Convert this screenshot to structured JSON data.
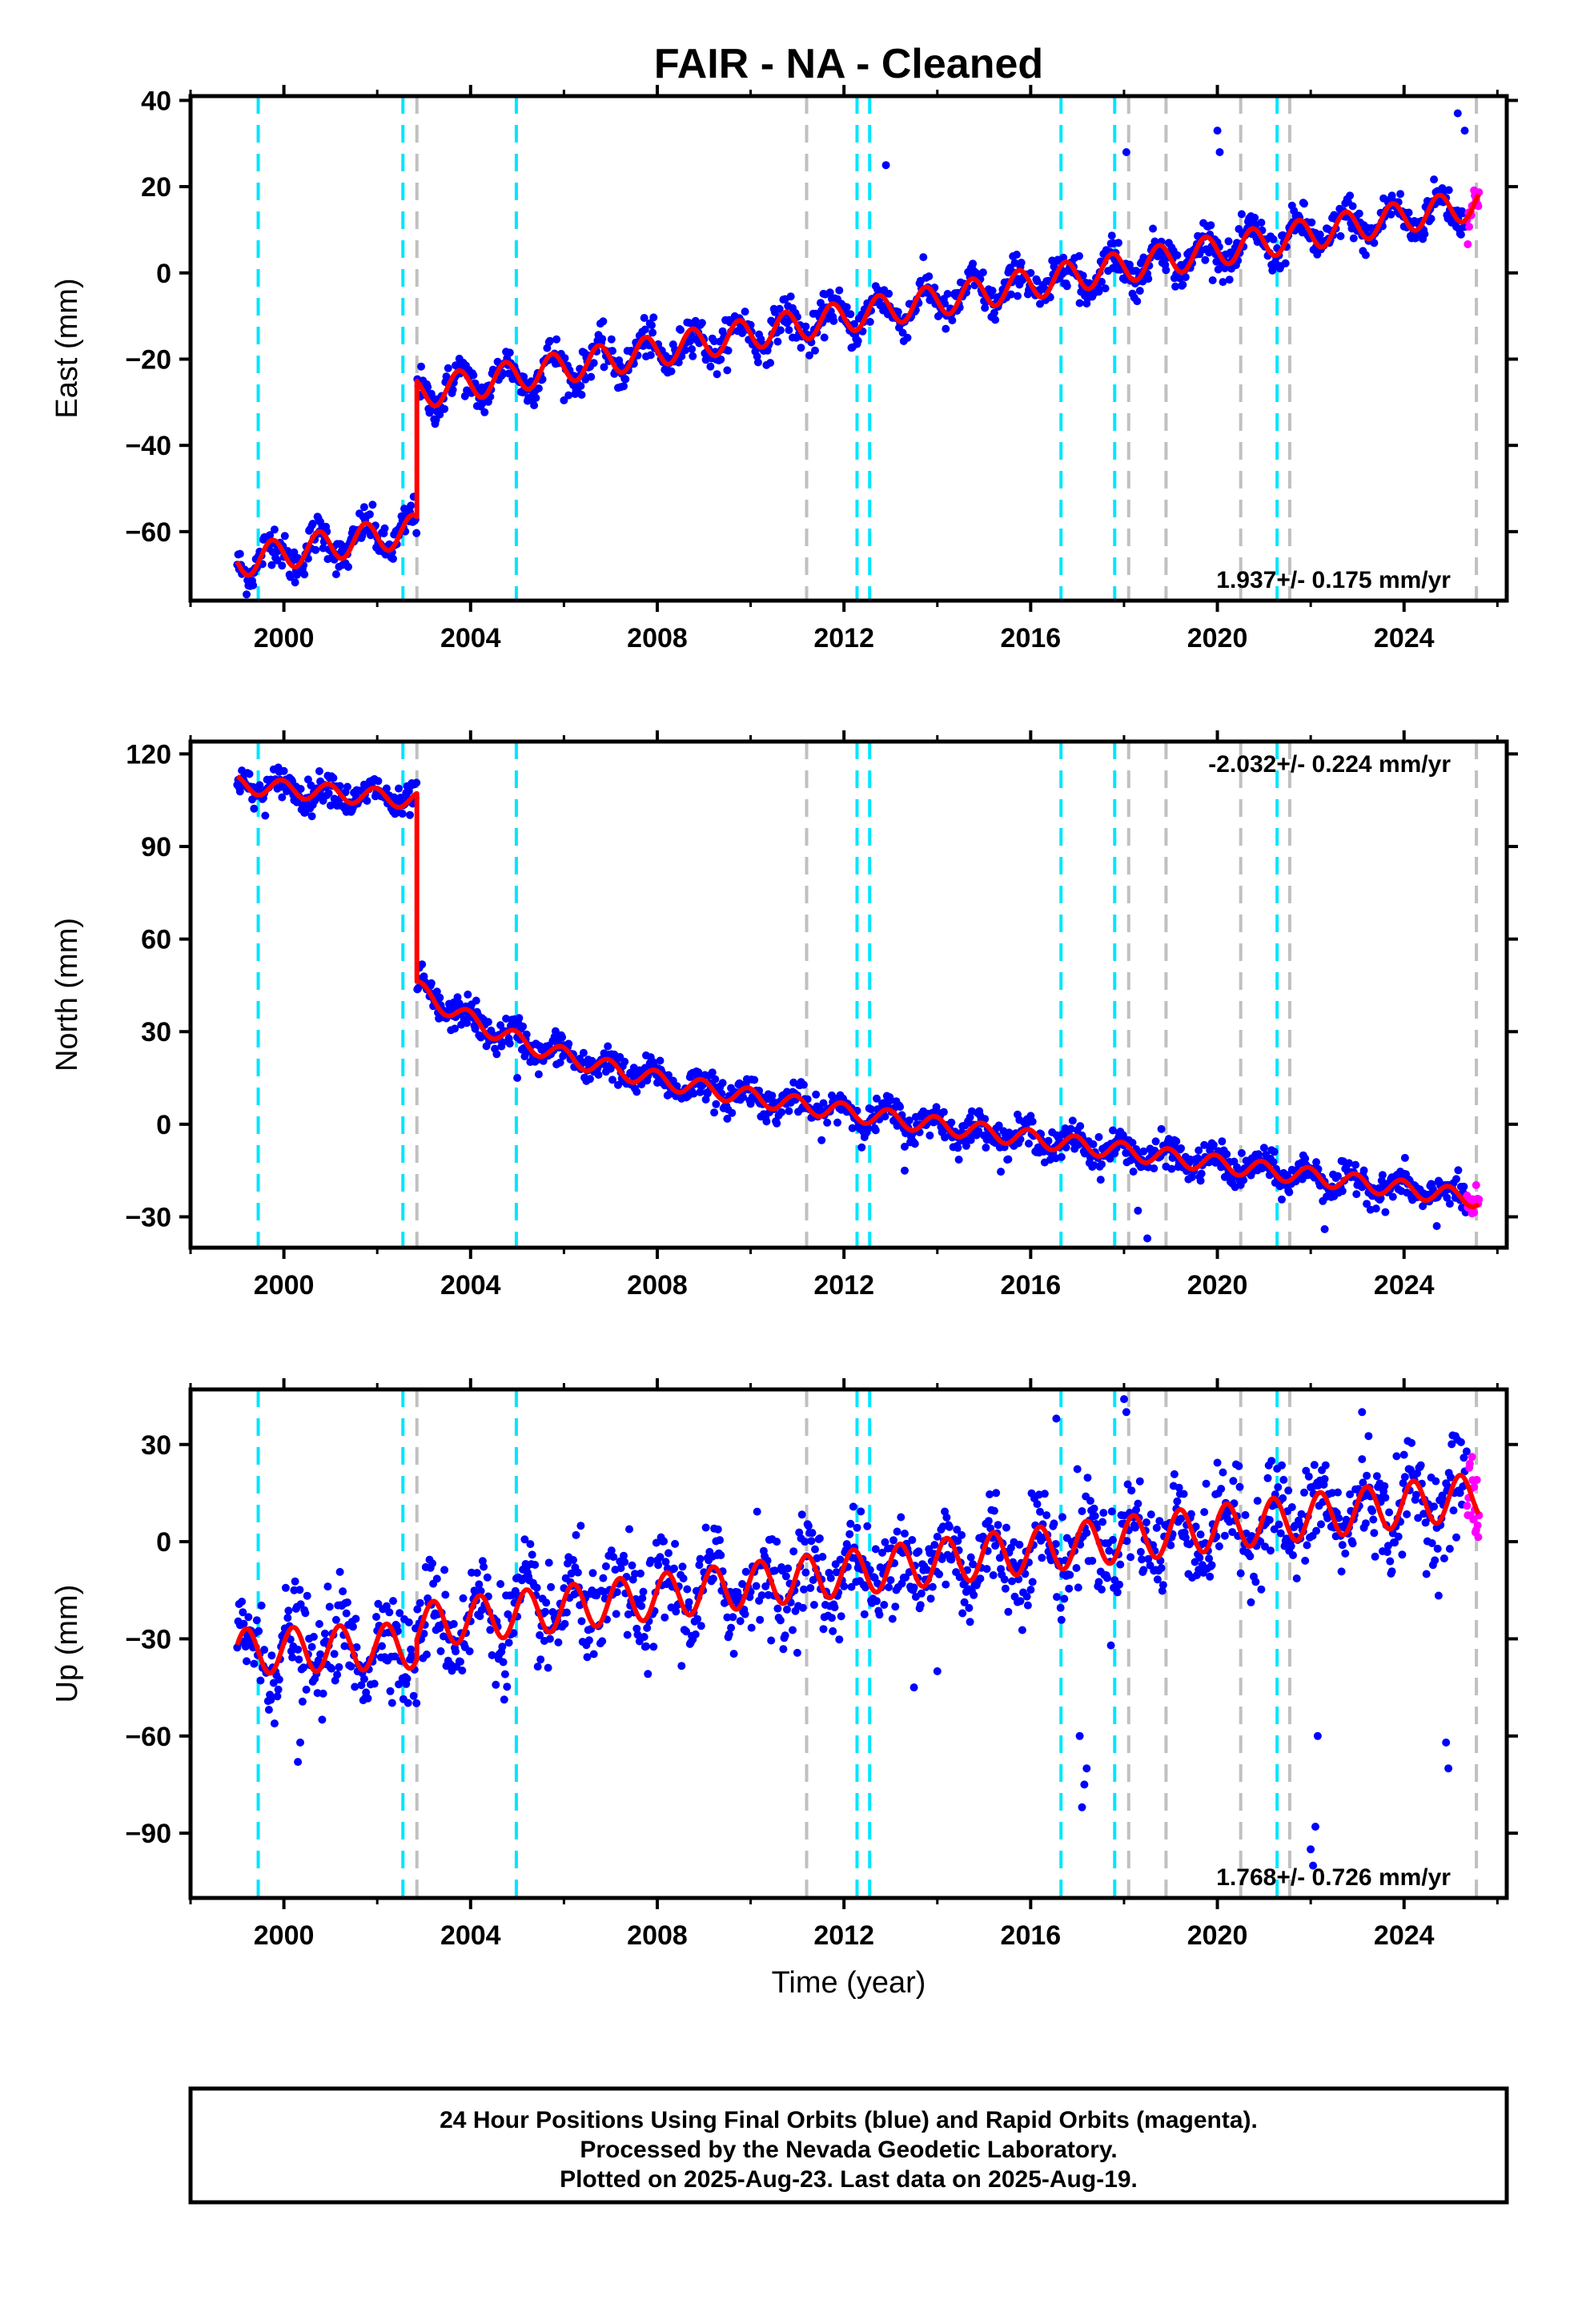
{
  "chart_data": {
    "type": "scatter",
    "title": "FAIR  - NA - Cleaned",
    "xlabel": "Time (year)",
    "xlim": [
      1998.0,
      2026.2
    ],
    "x_ticks": [
      2000,
      2004,
      2008,
      2012,
      2016,
      2020,
      2024
    ],
    "x_tick_labels": [
      "2000",
      "2004",
      "2008",
      "2012",
      "2016",
      "2020",
      "2024"
    ],
    "grid": false,
    "colors": {
      "final_orbits": "#0000ff",
      "rapid_orbits": "#ff00ff",
      "model": "#ff0000",
      "cyan_lines": "#00e5ff",
      "gray_lines": "#c0c0c0"
    },
    "vertical_lines": {
      "cyan": [
        1999.45,
        2002.55,
        2004.98,
        2012.28,
        2012.55,
        2016.65,
        2017.8,
        2021.28
      ],
      "gray": [
        2002.85,
        2011.2,
        2018.1,
        2018.9,
        2020.5,
        2021.55,
        2025.55
      ]
    },
    "panels": [
      {
        "ylabel": "East (mm)",
        "ylim": [
          -76,
          41
        ],
        "y_ticks": [
          -60,
          -40,
          -20,
          0,
          20,
          40
        ],
        "y_tick_labels": [
          "−60",
          "−40",
          "−20",
          "0",
          "20",
          "40"
        ],
        "rate_label": "1.937+/- 0.175 mm/yr",
        "rate_position": "bottom-right",
        "model": {
          "pieces": [
            {
              "start": 1999.0,
              "end": 2002.85,
              "offset": -67.0,
              "rate": 1.937,
              "ref": 1999.0
            },
            {
              "start": 2002.85,
              "end": 2025.6,
              "offset": -28.0,
              "rate": 1.937,
              "ref": 2002.85
            }
          ],
          "annual_amplitude": 3.6,
          "annual_phase": 0.5
        },
        "outliers": [
          [
            2017.05,
            -7
          ],
          [
            2018.05,
            28
          ],
          [
            2020.0,
            33
          ],
          [
            2020.05,
            28
          ],
          [
            2012.9,
            25
          ],
          [
            2025.15,
            37
          ],
          [
            2025.3,
            33
          ],
          [
            2010.9,
            -15
          ],
          [
            2018.4,
            -2
          ]
        ],
        "scatter_sigma": 2.2
      },
      {
        "ylabel": "North (mm)",
        "ylim": [
          -40,
          124
        ],
        "y_ticks": [
          -30,
          0,
          30,
          60,
          90,
          120
        ],
        "y_tick_labels": [
          "−30",
          "0",
          "30",
          "60",
          "90",
          "120"
        ],
        "rate_label": "-2.032+/- 0.224 mm/yr",
        "rate_position": "top-right",
        "model": {
          "pieces": [
            {
              "start": 1999.0,
              "end": 2002.85,
              "offset": 110.0,
              "rate": -1.3,
              "ref": 1999.0
            },
            {
              "start": 2002.85,
              "end": 2025.6,
              "offset": 44.0,
              "rate": -2.032,
              "ref": 2002.85,
              "decay_amp": 22.0,
              "decay_tau": 2.6
            }
          ],
          "annual_amplitude": 2.8,
          "annual_phase": 0.3
        },
        "outliers": [
          [
            2018.5,
            -37
          ],
          [
            2022.3,
            -34
          ],
          [
            2024.7,
            -33
          ],
          [
            2018.3,
            -28
          ],
          [
            2005.0,
            15
          ],
          [
            2013.3,
            -15
          ]
        ],
        "scatter_sigma": 2.6
      },
      {
        "ylabel": "Up (mm)",
        "ylim": [
          -110,
          47
        ],
        "y_ticks": [
          -90,
          -60,
          -30,
          0,
          30
        ],
        "y_tick_labels": [
          "−90",
          "−60",
          "−30",
          "0",
          "30"
        ],
        "rate_label": "1.768+/- 0.726 mm/yr",
        "rate_position": "bottom-right",
        "model": {
          "pieces": [
            {
              "start": 1999.0,
              "end": 2002.85,
              "offset": -34.0,
              "rate": 0.5,
              "ref": 1999.0
            },
            {
              "start": 2002.85,
              "end": 2025.6,
              "offset": -26.0,
              "rate": 1.768,
              "ref": 2002.85
            }
          ],
          "annual_amplitude": 7.0,
          "annual_phase": 0.05
        },
        "outliers": [
          [
            2017.1,
            -82
          ],
          [
            2017.15,
            -75
          ],
          [
            2017.2,
            -70
          ],
          [
            2017.05,
            -60
          ],
          [
            2022.0,
            -95
          ],
          [
            2022.05,
            -100
          ],
          [
            2022.1,
            -88
          ],
          [
            2022.15,
            -60
          ],
          [
            2024.9,
            -62
          ],
          [
            2024.95,
            -70
          ],
          [
            2016.55,
            38
          ],
          [
            2018.0,
            44
          ],
          [
            2018.05,
            40
          ],
          [
            2023.1,
            40
          ],
          [
            2000.3,
            -68
          ],
          [
            2000.35,
            -62
          ],
          [
            2013.5,
            -45
          ],
          [
            2014.0,
            -40
          ]
        ],
        "scatter_sigma": 7.5
      }
    ],
    "rapid_orbits_range": [
      2025.35,
      2025.62
    ],
    "legend_text": [
      "24 Hour Positions Using Final Orbits (blue) and Rapid Orbits (magenta).",
      "Processed by the Nevada Geodetic Laboratory.",
      "Plotted on 2025-Aug-23. Last data on 2025-Aug-19."
    ]
  }
}
